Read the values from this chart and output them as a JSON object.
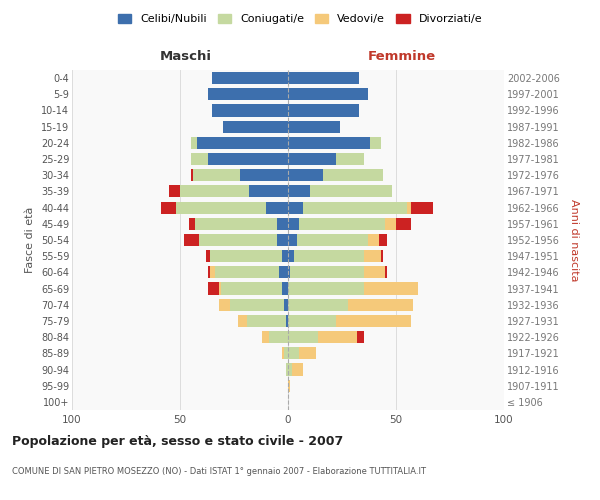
{
  "age_groups": [
    "100+",
    "95-99",
    "90-94",
    "85-89",
    "80-84",
    "75-79",
    "70-74",
    "65-69",
    "60-64",
    "55-59",
    "50-54",
    "45-49",
    "40-44",
    "35-39",
    "30-34",
    "25-29",
    "20-24",
    "15-19",
    "10-14",
    "5-9",
    "0-4"
  ],
  "birth_years": [
    "≤ 1906",
    "1907-1911",
    "1912-1916",
    "1917-1921",
    "1922-1926",
    "1927-1931",
    "1932-1936",
    "1937-1941",
    "1942-1946",
    "1947-1951",
    "1952-1956",
    "1957-1961",
    "1962-1966",
    "1967-1971",
    "1972-1976",
    "1977-1981",
    "1982-1986",
    "1987-1991",
    "1992-1996",
    "1997-2001",
    "2002-2006"
  ],
  "colors": {
    "celibi": "#3d6fad",
    "coniugati": "#c5d9a0",
    "vedovi": "#f5c97a",
    "divorziati": "#cc2222"
  },
  "maschi": {
    "celibi": [
      0,
      0,
      0,
      0,
      0,
      1,
      2,
      3,
      4,
      3,
      5,
      5,
      10,
      18,
      22,
      37,
      42,
      30,
      35,
      37,
      35
    ],
    "coniugati": [
      0,
      0,
      1,
      2,
      9,
      18,
      25,
      28,
      30,
      33,
      36,
      38,
      42,
      32,
      22,
      8,
      3,
      0,
      0,
      0,
      0
    ],
    "vedovi": [
      0,
      0,
      0,
      1,
      3,
      4,
      5,
      1,
      2,
      0,
      0,
      0,
      0,
      0,
      0,
      0,
      0,
      0,
      0,
      0,
      0
    ],
    "divorziati": [
      0,
      0,
      0,
      0,
      0,
      0,
      0,
      5,
      1,
      2,
      7,
      3,
      7,
      5,
      1,
      0,
      0,
      0,
      0,
      0,
      0
    ]
  },
  "femmine": {
    "celibi": [
      0,
      0,
      0,
      0,
      0,
      0,
      0,
      0,
      1,
      3,
      4,
      5,
      7,
      10,
      16,
      22,
      38,
      24,
      33,
      37,
      33
    ],
    "coniugati": [
      0,
      0,
      2,
      5,
      14,
      22,
      28,
      35,
      34,
      32,
      33,
      40,
      48,
      38,
      28,
      13,
      5,
      0,
      0,
      0,
      0
    ],
    "vedovi": [
      0,
      1,
      5,
      8,
      18,
      35,
      30,
      25,
      10,
      8,
      5,
      5,
      2,
      0,
      0,
      0,
      0,
      0,
      0,
      0,
      0
    ],
    "divorziati": [
      0,
      0,
      0,
      0,
      3,
      0,
      0,
      0,
      1,
      1,
      4,
      7,
      10,
      0,
      0,
      0,
      0,
      0,
      0,
      0,
      0
    ]
  },
  "title": "Popolazione per età, sesso e stato civile - 2007",
  "subtitle": "COMUNE DI SAN PIETRO MOSEZZO (NO) - Dati ISTAT 1° gennaio 2007 - Elaborazione TUTTITALIA.IT",
  "xlabel_left": "Maschi",
  "xlabel_right": "Femmine",
  "ylabel_left": "Fasce di età",
  "ylabel_right": "Anni di nascita",
  "xlim": 100,
  "legend_labels": [
    "Celibi/Nubili",
    "Coniugati/e",
    "Vedovi/e",
    "Divorziati/e"
  ],
  "background": "#ffffff"
}
